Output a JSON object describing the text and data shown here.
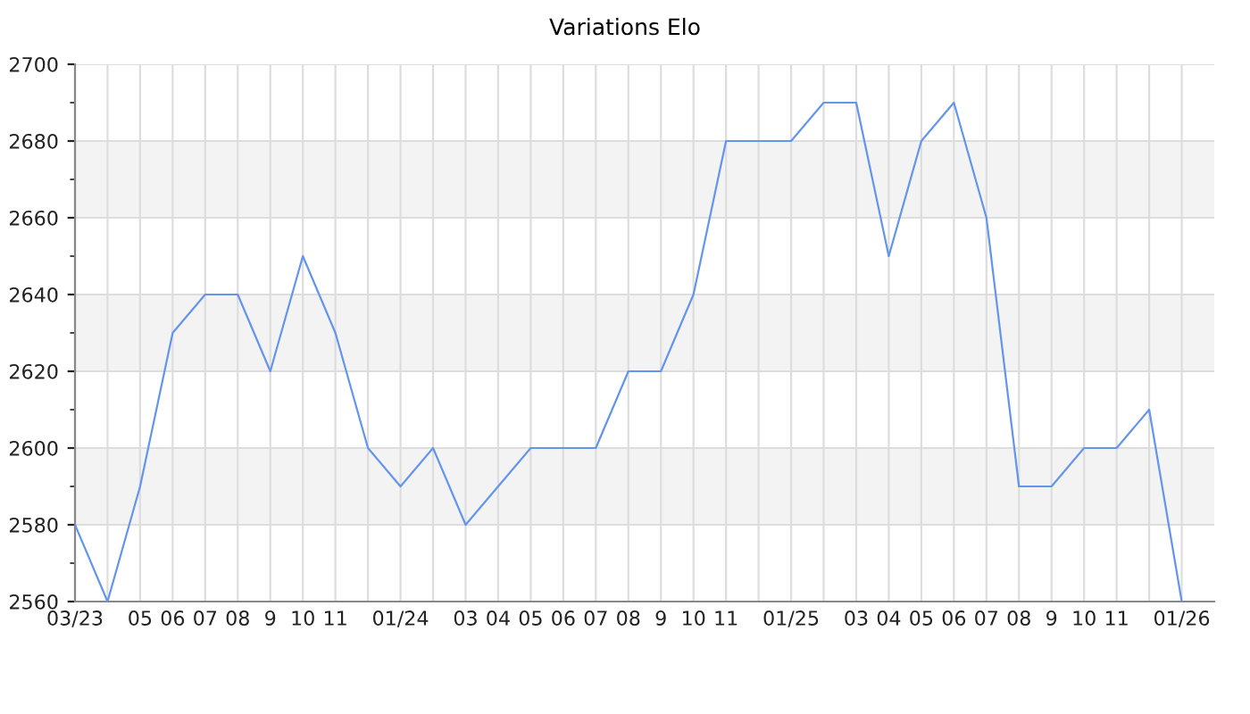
{
  "chart_data": {
    "type": "line",
    "title": "Variations Elo",
    "categories": [
      "03/23",
      null,
      "05",
      "06",
      "07",
      "08",
      "9",
      "10",
      "11",
      null,
      "01/24",
      null,
      "03",
      "04",
      "05",
      "06",
      "07",
      "08",
      "9",
      "10",
      "11",
      null,
      "01/25",
      null,
      "03",
      "04",
      "05",
      "06",
      "07",
      "08",
      "9",
      "10",
      "11",
      null,
      "01/26"
    ],
    "series": [
      {
        "color": "#6495ed",
        "values": [
          2580,
          2560,
          2590,
          2630,
          2640,
          2640,
          2620,
          2650,
          2630,
          2600,
          2590,
          2600,
          2580,
          2590,
          2600,
          2600,
          2600,
          2620,
          2620,
          2640,
          2680,
          2680,
          2680,
          2690,
          2690,
          2650,
          2680,
          2690,
          2660,
          2590,
          2590,
          2600,
          2600,
          2610,
          2560
        ]
      }
    ],
    "ylim": [
      2560,
      2700
    ],
    "yticks": [
      2560,
      2580,
      2600,
      2620,
      2640,
      2660,
      2680,
      2700
    ],
    "grid": true,
    "legend": false,
    "marker": "none",
    "line_style": "solid",
    "bands": [
      {
        "axis": "y",
        "from": 2580,
        "to": 2600,
        "color": "#f3f3f3"
      },
      {
        "axis": "y",
        "from": 2620,
        "to": 2640,
        "color": "#f3f3f3"
      },
      {
        "axis": "y",
        "from": 2660,
        "to": 2680,
        "color": "#f3f3f3"
      }
    ]
  }
}
